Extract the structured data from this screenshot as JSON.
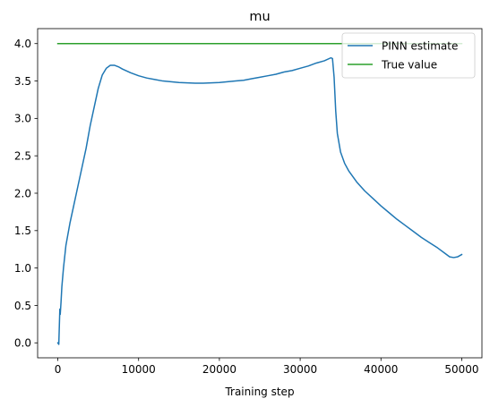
{
  "chart_data": {
    "type": "line",
    "title": "mu",
    "xlabel": "Training step",
    "ylabel": "",
    "xlim": [
      -2500,
      52500
    ],
    "ylim": [
      -0.2,
      4.2
    ],
    "xticks": [
      0,
      10000,
      20000,
      30000,
      40000,
      50000
    ],
    "xtick_labels": [
      "0",
      "10000",
      "20000",
      "30000",
      "40000",
      "50000"
    ],
    "yticks": [
      0.0,
      0.5,
      1.0,
      1.5,
      2.0,
      2.5,
      3.0,
      3.5,
      4.0
    ],
    "ytick_labels": [
      "0.0",
      "0.5",
      "1.0",
      "1.5",
      "2.0",
      "2.5",
      "3.0",
      "3.5",
      "4.0"
    ],
    "grid": false,
    "legend_position": "top-right",
    "series": [
      {
        "name": "PINN estimate",
        "color": "#1f77b4",
        "points": [
          [
            0,
            0.0
          ],
          [
            120,
            -0.02
          ],
          [
            250,
            0.45
          ],
          [
            300,
            0.38
          ],
          [
            400,
            0.55
          ],
          [
            500,
            0.75
          ],
          [
            700,
            1.0
          ],
          [
            1000,
            1.3
          ],
          [
            1500,
            1.6
          ],
          [
            2000,
            1.85
          ],
          [
            2500,
            2.1
          ],
          [
            3000,
            2.35
          ],
          [
            3500,
            2.6
          ],
          [
            4000,
            2.9
          ],
          [
            4500,
            3.15
          ],
          [
            5000,
            3.4
          ],
          [
            5500,
            3.58
          ],
          [
            6000,
            3.67
          ],
          [
            6500,
            3.71
          ],
          [
            7000,
            3.71
          ],
          [
            7500,
            3.69
          ],
          [
            8000,
            3.66
          ],
          [
            9000,
            3.61
          ],
          [
            10000,
            3.57
          ],
          [
            11000,
            3.54
          ],
          [
            12000,
            3.52
          ],
          [
            13000,
            3.5
          ],
          [
            14000,
            3.49
          ],
          [
            15000,
            3.48
          ],
          [
            16000,
            3.475
          ],
          [
            17000,
            3.47
          ],
          [
            18000,
            3.47
          ],
          [
            19000,
            3.475
          ],
          [
            20000,
            3.48
          ],
          [
            21000,
            3.49
          ],
          [
            22000,
            3.5
          ],
          [
            23000,
            3.51
          ],
          [
            24000,
            3.53
          ],
          [
            25000,
            3.55
          ],
          [
            26000,
            3.57
          ],
          [
            27000,
            3.59
          ],
          [
            28000,
            3.62
          ],
          [
            29000,
            3.64
          ],
          [
            30000,
            3.67
          ],
          [
            31000,
            3.7
          ],
          [
            32000,
            3.74
          ],
          [
            33000,
            3.77
          ],
          [
            33800,
            3.81
          ],
          [
            34000,
            3.8
          ],
          [
            34200,
            3.55
          ],
          [
            34400,
            3.1
          ],
          [
            34600,
            2.8
          ],
          [
            35000,
            2.55
          ],
          [
            35500,
            2.4
          ],
          [
            36000,
            2.3
          ],
          [
            37000,
            2.15
          ],
          [
            38000,
            2.03
          ],
          [
            39000,
            1.93
          ],
          [
            40000,
            1.83
          ],
          [
            41000,
            1.74
          ],
          [
            42000,
            1.65
          ],
          [
            43000,
            1.57
          ],
          [
            44000,
            1.49
          ],
          [
            45000,
            1.41
          ],
          [
            46000,
            1.34
          ],
          [
            47000,
            1.27
          ],
          [
            48000,
            1.19
          ],
          [
            48500,
            1.15
          ],
          [
            49000,
            1.14
          ],
          [
            49500,
            1.15
          ],
          [
            50000,
            1.18
          ]
        ]
      },
      {
        "name": "True value",
        "color": "#2ca02c",
        "points": [
          [
            0,
            4.0
          ],
          [
            50000,
            4.0
          ]
        ]
      }
    ]
  }
}
